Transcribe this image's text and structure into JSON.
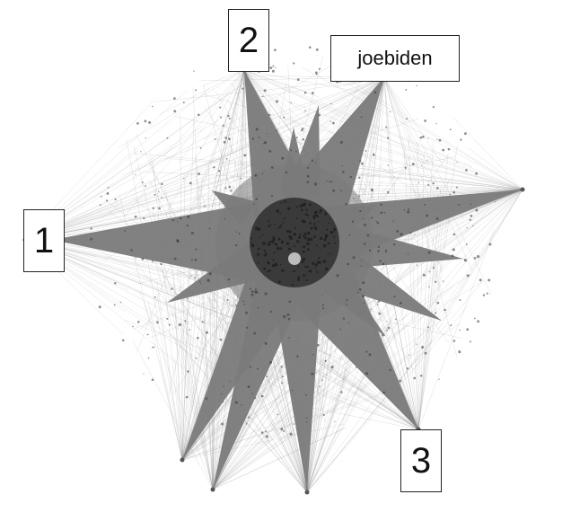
{
  "colors": {
    "background": "#ffffff",
    "network_fill": "#7a7a7a",
    "core": "#3a3a3a",
    "edges": "#8c8c8c",
    "label_border": "#222222",
    "label_text": "#111111"
  },
  "labels": {
    "hub_1": "1",
    "hub_2": "2",
    "hub_3": "3",
    "joebiden": "joebiden"
  }
}
